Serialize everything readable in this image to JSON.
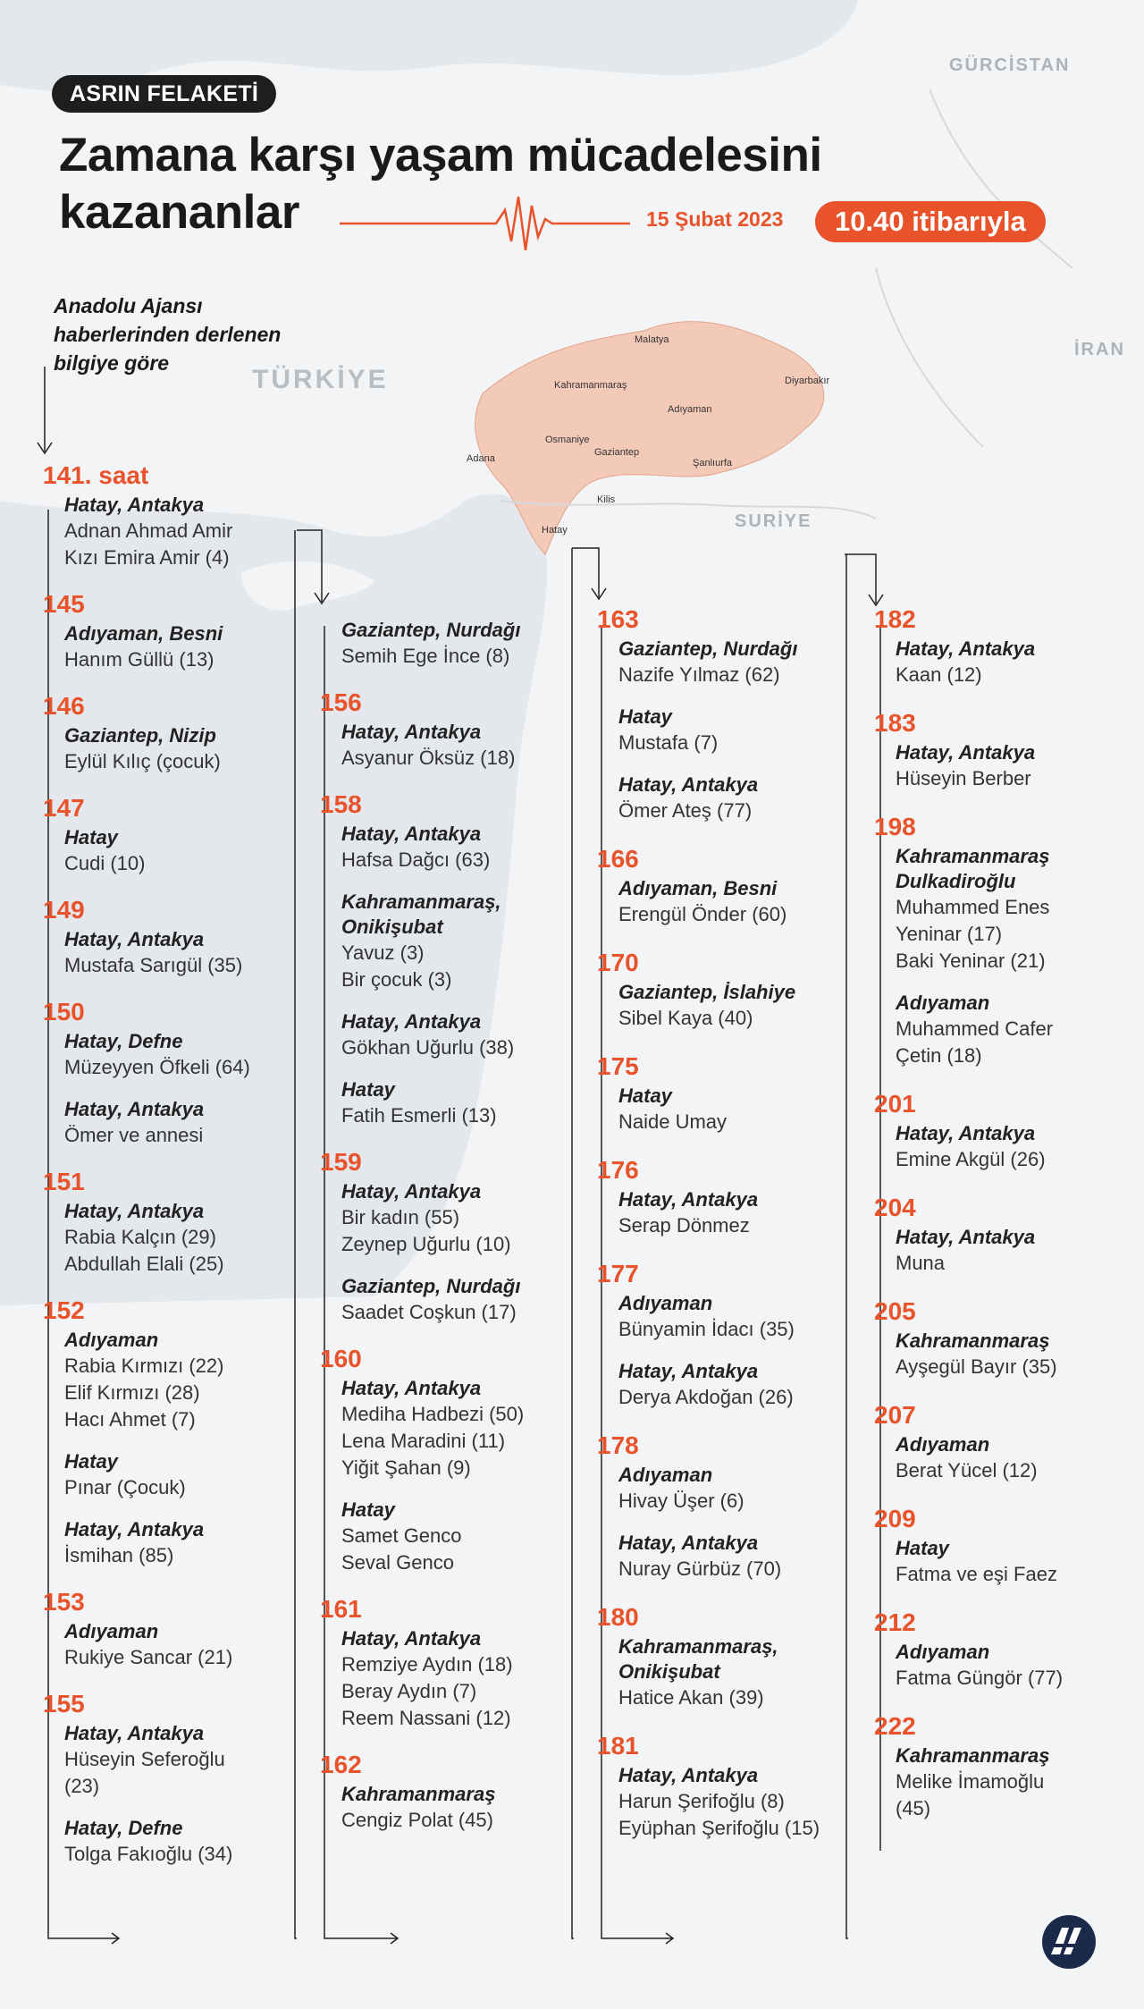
{
  "header": {
    "badge": "ASRIN FELAKETİ",
    "title_line1": "Zamana karşı yaşam mücadelesini",
    "title_line2": "kazananlar",
    "date": "15 Şubat 2023",
    "time": "10.40 itibarıyla",
    "source_lines": [
      "Anadolu Ajansı",
      "haberlerinden derlenen",
      "bilgiye göre"
    ]
  },
  "map": {
    "countries": [
      "GÜRCİSTAN",
      "İRAN",
      "TÜRKİYE",
      "SURİYE"
    ],
    "cities": [
      "Malatya",
      "Kahramanmaraş",
      "Diyarbakır",
      "Adıyaman",
      "Osmaniye",
      "Adana",
      "Gaziantep",
      "Şanlıurfa",
      "Kilis",
      "Hatay"
    ]
  },
  "columns": [
    [
      {
        "hour": "141. saat",
        "groups": [
          {
            "place": "Hatay, Antakya",
            "names": [
              "Adnan Ahmad Amir",
              "Kızı Emira Amir (4)"
            ]
          }
        ]
      },
      {
        "hour": "145",
        "groups": [
          {
            "place": "Adıyaman, Besni",
            "names": [
              "Hanım Güllü (13)"
            ]
          }
        ]
      },
      {
        "hour": "146",
        "groups": [
          {
            "place": "Gaziantep, Nizip",
            "names": [
              "Eylül Kılıç (çocuk)"
            ]
          }
        ]
      },
      {
        "hour": "147",
        "groups": [
          {
            "place": "Hatay",
            "names": [
              "Cudi (10)"
            ]
          }
        ]
      },
      {
        "hour": "149",
        "groups": [
          {
            "place": "Hatay, Antakya",
            "names": [
              "Mustafa Sarıgül (35)"
            ]
          }
        ]
      },
      {
        "hour": "150",
        "groups": [
          {
            "place": "Hatay, Defne",
            "names": [
              "Müzeyyen Öfkeli (64)"
            ]
          },
          {
            "place": "Hatay, Antakya",
            "names": [
              "Ömer ve annesi"
            ]
          }
        ]
      },
      {
        "hour": "151",
        "groups": [
          {
            "place": "Hatay, Antakya",
            "names": [
              "Rabia Kalçın (29)",
              "Abdullah Elali (25)"
            ]
          }
        ]
      },
      {
        "hour": "152",
        "groups": [
          {
            "place": "Adıyaman",
            "names": [
              "Rabia Kırmızı (22)",
              "Elif Kırmızı (28)",
              "Hacı Ahmet (7)"
            ]
          },
          {
            "place": "Hatay",
            "names": [
              "Pınar (Çocuk)"
            ]
          },
          {
            "place": "Hatay, Antakya",
            "names": [
              "İsmihan (85)"
            ]
          }
        ]
      },
      {
        "hour": "153",
        "groups": [
          {
            "place": "Adıyaman",
            "names": [
              "Rukiye Sancar (21)"
            ]
          }
        ]
      },
      {
        "hour": "155",
        "groups": [
          {
            "place": "Hatay, Antakya",
            "names": [
              "Hüseyin Seferoğlu",
              "(23)"
            ]
          },
          {
            "place": "Hatay, Defne",
            "names": [
              "Tolga Fakıoğlu (34)"
            ]
          }
        ]
      }
    ],
    [
      {
        "hour": "",
        "groups": [
          {
            "place": "Gaziantep, Nurdağı",
            "names": [
              "Semih Ege İnce (8)"
            ]
          }
        ]
      },
      {
        "hour": "156",
        "groups": [
          {
            "place": "Hatay, Antakya",
            "names": [
              "Asyanur Öksüz (18)"
            ]
          }
        ]
      },
      {
        "hour": "158",
        "groups": [
          {
            "place": "Hatay, Antakya",
            "names": [
              "Hafsa Dağcı (63)"
            ]
          },
          {
            "place": "Kahramanmaraş, Onikişubat",
            "names": [
              "Yavuz (3)",
              "Bir çocuk (3)"
            ]
          },
          {
            "place": "Hatay, Antakya",
            "names": [
              "Gökhan Uğurlu (38)"
            ]
          },
          {
            "place": "Hatay",
            "names": [
              "Fatih Esmerli (13)"
            ]
          }
        ]
      },
      {
        "hour": "159",
        "groups": [
          {
            "place": "Hatay, Antakya",
            "names": [
              "Bir kadın (55)",
              "Zeynep Uğurlu (10)"
            ]
          },
          {
            "place": "Gaziantep, Nurdağı",
            "names": [
              "Saadet Coşkun (17)"
            ]
          }
        ]
      },
      {
        "hour": "160",
        "groups": [
          {
            "place": "Hatay, Antakya",
            "names": [
              "Mediha Hadbezi (50)",
              "Lena Maradini (11)",
              "Yiğit Şahan (9)"
            ]
          },
          {
            "place": "Hatay",
            "names": [
              "Samet Genco",
              "Seval Genco"
            ]
          }
        ]
      },
      {
        "hour": "161",
        "groups": [
          {
            "place": "Hatay, Antakya",
            "names": [
              "Remziye Aydın (18)",
              "Beray Aydın (7)",
              "Reem Nassani (12)"
            ]
          }
        ]
      },
      {
        "hour": "162",
        "groups": [
          {
            "place": "Kahramanmaraş",
            "names": [
              "Cengiz Polat (45)"
            ]
          }
        ]
      }
    ],
    [
      {
        "hour": "163",
        "groups": [
          {
            "place": "Gaziantep, Nurdağı",
            "names": [
              "Nazife Yılmaz (62)"
            ]
          },
          {
            "place": "Hatay",
            "names": [
              "Mustafa (7)"
            ]
          },
          {
            "place": "Hatay, Antakya",
            "names": [
              "Ömer Ateş (77)"
            ]
          }
        ]
      },
      {
        "hour": "166",
        "groups": [
          {
            "place": "Adıyaman, Besni",
            "names": [
              "Erengül Önder (60)"
            ]
          }
        ]
      },
      {
        "hour": "170",
        "groups": [
          {
            "place": "Gaziantep, İslahiye",
            "names": [
              "Sibel Kaya (40)"
            ]
          }
        ]
      },
      {
        "hour": "175",
        "groups": [
          {
            "place": "Hatay",
            "names": [
              "Naide Umay"
            ]
          }
        ]
      },
      {
        "hour": "176",
        "groups": [
          {
            "place": "Hatay, Antakya",
            "names": [
              "Serap Dönmez"
            ]
          }
        ]
      },
      {
        "hour": "177",
        "groups": [
          {
            "place": "Adıyaman",
            "names": [
              "Bünyamin İdacı (35)"
            ]
          },
          {
            "place": "Hatay, Antakya",
            "names": [
              "Derya Akdoğan (26)"
            ]
          }
        ]
      },
      {
        "hour": "178",
        "groups": [
          {
            "place": "Adıyaman",
            "names": [
              "Hivay Üşer (6)"
            ]
          },
          {
            "place": "Hatay, Antakya",
            "names": [
              "Nuray Gürbüz (70)"
            ]
          }
        ]
      },
      {
        "hour": "180",
        "groups": [
          {
            "place": "Kahramanmaraş, Onikişubat",
            "names": [
              "Hatice Akan (39)"
            ]
          }
        ]
      },
      {
        "hour": "181",
        "groups": [
          {
            "place": "Hatay, Antakya",
            "names": [
              "Harun Şerifoğlu (8)",
              "Eyüphan Şerifoğlu (15)"
            ]
          }
        ]
      }
    ],
    [
      {
        "hour": "182",
        "groups": [
          {
            "place": "Hatay, Antakya",
            "names": [
              "Kaan (12)"
            ]
          }
        ]
      },
      {
        "hour": "183",
        "groups": [
          {
            "place": "Hatay, Antakya",
            "names": [
              "Hüseyin Berber"
            ]
          }
        ]
      },
      {
        "hour": "198",
        "groups": [
          {
            "place": "Kahramanmaraş Dulkadiroğlu",
            "names": [
              "Muhammed Enes",
              "Yeninar (17)",
              "Baki Yeninar (21)"
            ]
          },
          {
            "place": "Adıyaman",
            "names": [
              "Muhammed Cafer",
              "Çetin (18)"
            ]
          }
        ]
      },
      {
        "hour": "201",
        "groups": [
          {
            "place": "Hatay, Antakya",
            "names": [
              "Emine Akgül (26)"
            ]
          }
        ]
      },
      {
        "hour": "204",
        "groups": [
          {
            "place": "Hatay, Antakya",
            "names": [
              "Muna"
            ]
          }
        ]
      },
      {
        "hour": "205",
        "groups": [
          {
            "place": "Kahramanmaraş",
            "names": [
              "Ayşegül Bayır (35)"
            ]
          }
        ]
      },
      {
        "hour": "207",
        "groups": [
          {
            "place": "Adıyaman",
            "names": [
              "Berat Yücel (12)"
            ]
          }
        ]
      },
      {
        "hour": "209",
        "groups": [
          {
            "place": "Hatay",
            "names": [
              "Fatma ve eşi Faez"
            ]
          }
        ]
      },
      {
        "hour": "212",
        "groups": [
          {
            "place": "Adıyaman",
            "names": [
              "Fatma Güngör (77)"
            ]
          }
        ]
      },
      {
        "hour": "222",
        "groups": [
          {
            "place": "Kahramanmaraş",
            "names": [
              "Melike İmamoğlu",
              "(45)"
            ]
          }
        ]
      }
    ]
  ],
  "logo": "AA",
  "colors": {
    "accent": "#e8532b",
    "dark": "#1e1e1e",
    "sea": "#dfe6ec",
    "region": "#f3c9b8"
  }
}
